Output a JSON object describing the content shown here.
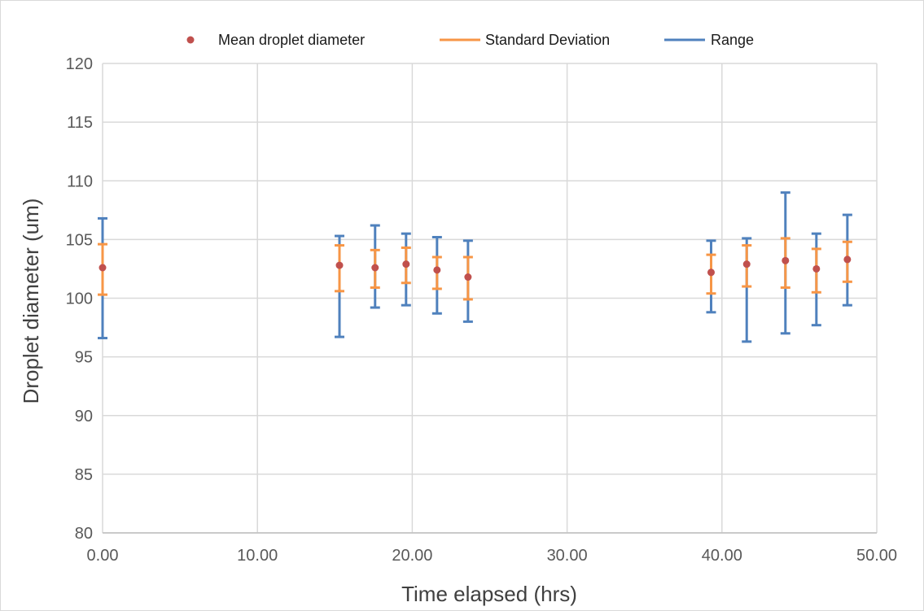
{
  "chart_data": {
    "type": "scatter",
    "title": "",
    "xlabel": "Time elapsed (hrs)",
    "ylabel": "Droplet diameter (um)",
    "xlim": [
      0,
      50
    ],
    "ylim": [
      80,
      120
    ],
    "x_ticks": [
      "0.00",
      "10.00",
      "20.00",
      "30.00",
      "40.00",
      "50.00"
    ],
    "y_ticks": [
      "80",
      "85",
      "90",
      "95",
      "100",
      "105",
      "110",
      "115",
      "120"
    ],
    "grid": true,
    "legend_position": "top",
    "legend": [
      "Mean droplet diameter",
      "Standard Deviation",
      "Range"
    ],
    "colors": {
      "mean": "#c0504d",
      "std": "#f79646",
      "range": "#4f81bd"
    },
    "points": [
      {
        "x": 0.0,
        "mean": 102.6,
        "std_low": 100.3,
        "std_high": 104.6,
        "min": 96.6,
        "max": 106.8
      },
      {
        "x": 15.3,
        "mean": 102.8,
        "std_low": 100.6,
        "std_high": 104.5,
        "min": 96.7,
        "max": 105.3
      },
      {
        "x": 17.6,
        "mean": 102.6,
        "std_low": 100.9,
        "std_high": 104.1,
        "min": 99.2,
        "max": 106.2
      },
      {
        "x": 19.6,
        "mean": 102.9,
        "std_low": 101.3,
        "std_high": 104.3,
        "min": 99.4,
        "max": 105.5
      },
      {
        "x": 21.6,
        "mean": 102.4,
        "std_low": 100.8,
        "std_high": 103.5,
        "min": 98.7,
        "max": 105.2
      },
      {
        "x": 23.6,
        "mean": 101.8,
        "std_low": 99.9,
        "std_high": 103.5,
        "min": 98.0,
        "max": 104.9
      },
      {
        "x": 39.3,
        "mean": 102.2,
        "std_low": 100.4,
        "std_high": 103.7,
        "min": 98.8,
        "max": 104.9
      },
      {
        "x": 41.6,
        "mean": 102.9,
        "std_low": 101.0,
        "std_high": 104.5,
        "min": 96.3,
        "max": 105.1
      },
      {
        "x": 44.1,
        "mean": 103.2,
        "std_low": 100.9,
        "std_high": 105.1,
        "min": 97.0,
        "max": 109.0
      },
      {
        "x": 46.1,
        "mean": 102.5,
        "std_low": 100.5,
        "std_high": 104.2,
        "min": 97.7,
        "max": 105.5
      },
      {
        "x": 48.1,
        "mean": 103.3,
        "std_low": 101.4,
        "std_high": 104.8,
        "min": 99.4,
        "max": 107.1
      }
    ]
  }
}
